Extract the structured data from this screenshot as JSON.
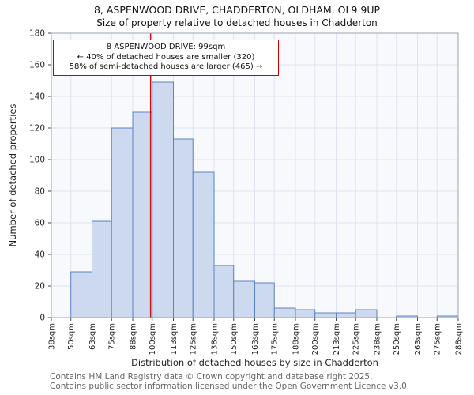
{
  "title": "8, ASPENWOOD DRIVE, CHADDERTON, OLDHAM, OL9 9UP",
  "subtitle": "Size of property relative to detached houses in Chadderton",
  "annotation": {
    "line1": "8 ASPENWOOD DRIVE: 99sqm",
    "line2": "← 40% of detached houses are smaller (320)",
    "line3": "58% of semi-detached houses are larger (465) →"
  },
  "chart_data": {
    "type": "bar",
    "title": "Size of property relative to detached houses in Chadderton",
    "xlabel": "Distribution of detached houses by size in Chadderton",
    "ylabel": "Number of detached properties",
    "bin_edges_sqm": [
      38,
      50,
      63,
      75,
      88,
      100,
      113,
      125,
      138,
      150,
      163,
      175,
      188,
      200,
      213,
      225,
      238,
      250,
      263,
      275,
      288
    ],
    "tick_labels": [
      "38sqm",
      "50sqm",
      "63sqm",
      "75sqm",
      "88sqm",
      "100sqm",
      "113sqm",
      "125sqm",
      "138sqm",
      "150sqm",
      "163sqm",
      "175sqm",
      "188sqm",
      "200sqm",
      "213sqm",
      "225sqm",
      "238sqm",
      "250sqm",
      "263sqm",
      "275sqm",
      "288sqm"
    ],
    "values": [
      0,
      29,
      61,
      120,
      130,
      149,
      113,
      92,
      33,
      23,
      22,
      6,
      5,
      3,
      3,
      5,
      0,
      1,
      0,
      1
    ],
    "ylim": [
      0,
      180
    ],
    "ytick_step": 20,
    "grid": true,
    "legend": "none",
    "marker_value_sqm": 99,
    "marker_color": "#cc1111",
    "bar_fill": "#cdd9ee",
    "bar_stroke": "#5b82c3",
    "grid_color": "#dde3f0",
    "plot_bg": "#f7f9fd",
    "frame_color": "#9aa3b5"
  },
  "footer": {
    "line1": "Contains HM Land Registry data © Crown copyright and database right 2025.",
    "line2": "Contains public sector information licensed under the Open Government Licence v3.0."
  }
}
